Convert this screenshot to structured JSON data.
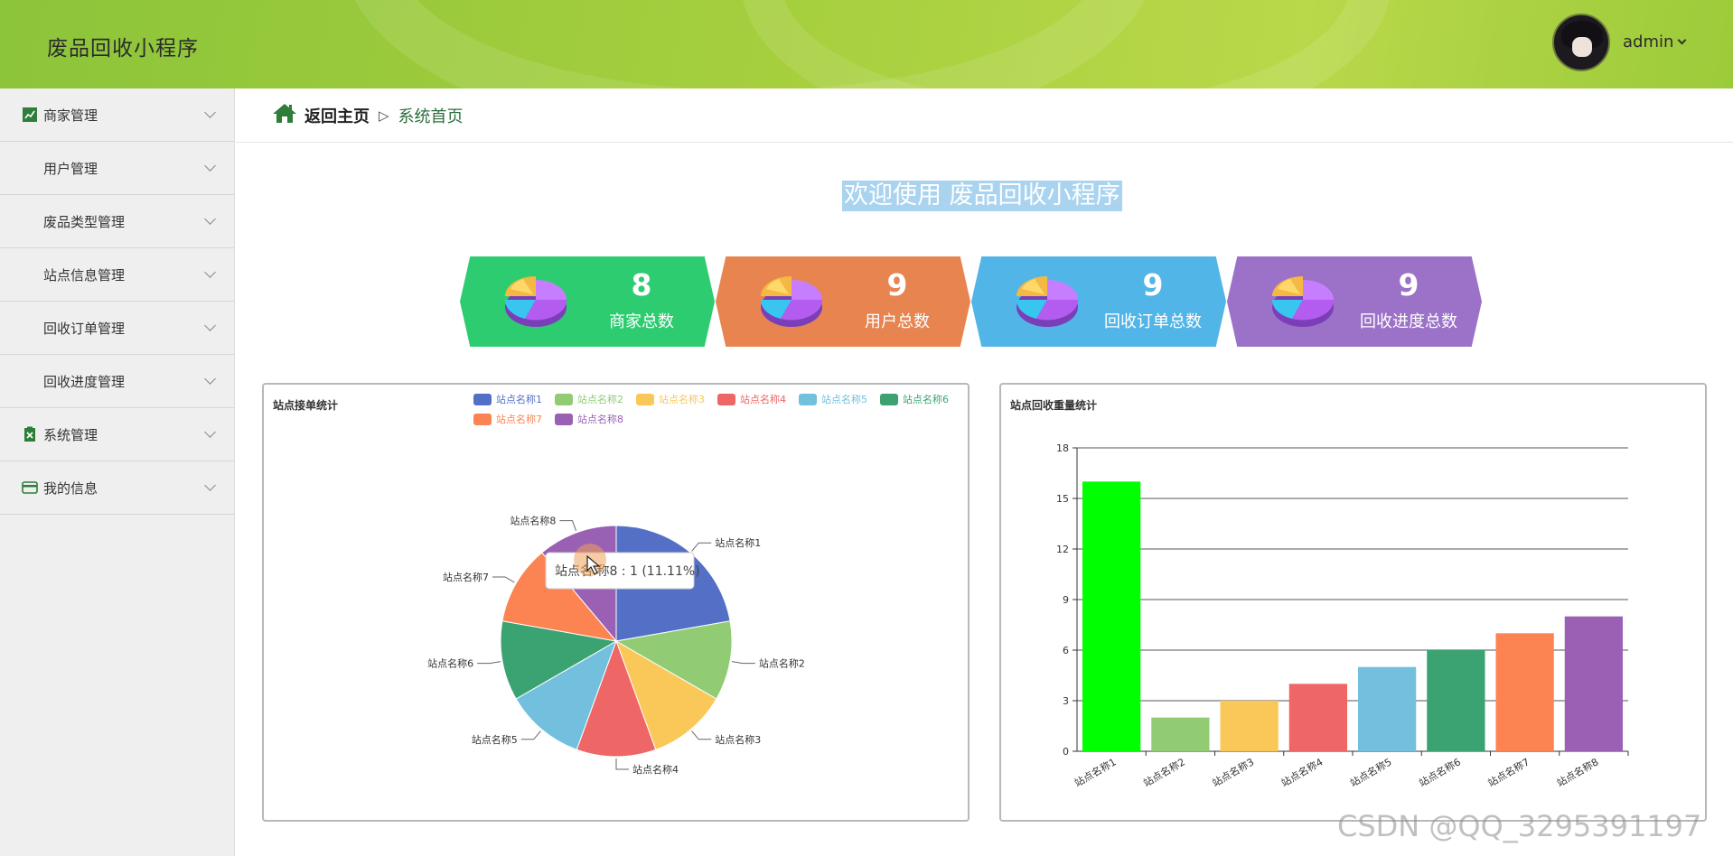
{
  "header": {
    "app_title": "废品回收小程序",
    "username": "admin",
    "bg_color": "#a6cf3e"
  },
  "sidebar": {
    "items": [
      {
        "label": "商家管理",
        "icon": "chart-line-icon"
      },
      {
        "label": "用户管理",
        "icon": "grid-icon"
      },
      {
        "label": "废品类型管理",
        "icon": "grid-icon"
      },
      {
        "label": "站点信息管理",
        "icon": "grid-9-icon"
      },
      {
        "label": "回收订单管理",
        "icon": "grid-icon"
      },
      {
        "label": "回收进度管理",
        "icon": "grid-icon"
      },
      {
        "label": "系统管理",
        "icon": "clipboard-x-icon"
      },
      {
        "label": "我的信息",
        "icon": "card-icon"
      }
    ]
  },
  "breadcrumb": {
    "home": "返回主页",
    "separator": "▷",
    "current": "系统首页"
  },
  "welcome": "欢迎使用 废品回收小程序",
  "stats": [
    {
      "value": "8",
      "label": "商家总数",
      "color": "#2ecc71"
    },
    {
      "value": "9",
      "label": "用户总数",
      "color": "#e8844f"
    },
    {
      "value": "9",
      "label": "回收订单总数",
      "color": "#52b5e8"
    },
    {
      "value": "9",
      "label": "回收进度总数",
      "color": "#9b72c8"
    }
  ],
  "chart_data": [
    {
      "type": "pie",
      "title": "站点接单统计",
      "legend_position": "top-right",
      "categories": [
        "站点名称1",
        "站点名称2",
        "站点名称3",
        "站点名称4",
        "站点名称5",
        "站点名称6",
        "站点名称7",
        "站点名称8"
      ],
      "values": [
        2,
        1,
        1,
        1,
        1,
        1,
        1,
        1
      ],
      "colors": [
        "#5470c6",
        "#91cc75",
        "#fac858",
        "#ee6666",
        "#73c0de",
        "#3ba272",
        "#fc8452",
        "#9a60b4"
      ],
      "tooltip": "站点名称8 : 1 (11.11%)",
      "tooltip_visible": "站点名   称8 : 1 (11.11%)"
    },
    {
      "type": "bar",
      "title": "站点回收重量统计",
      "categories": [
        "站点名称1",
        "站点名称2",
        "站点名称3",
        "站点名称4",
        "站点名称5",
        "站点名称6",
        "站点名称7",
        "站点名称8"
      ],
      "values": [
        16,
        2,
        3,
        4,
        5,
        6,
        7,
        8
      ],
      "colors": [
        "#00ff00",
        "#91cc75",
        "#fac858",
        "#ee6666",
        "#73c0de",
        "#3ba272",
        "#fc8452",
        "#9a60b4"
      ],
      "ylim": [
        0,
        18
      ],
      "yticks": [
        0,
        3,
        6,
        9,
        12,
        15,
        18
      ],
      "grid": true
    }
  ],
  "watermark": "CSDN @QQ_3295391197"
}
